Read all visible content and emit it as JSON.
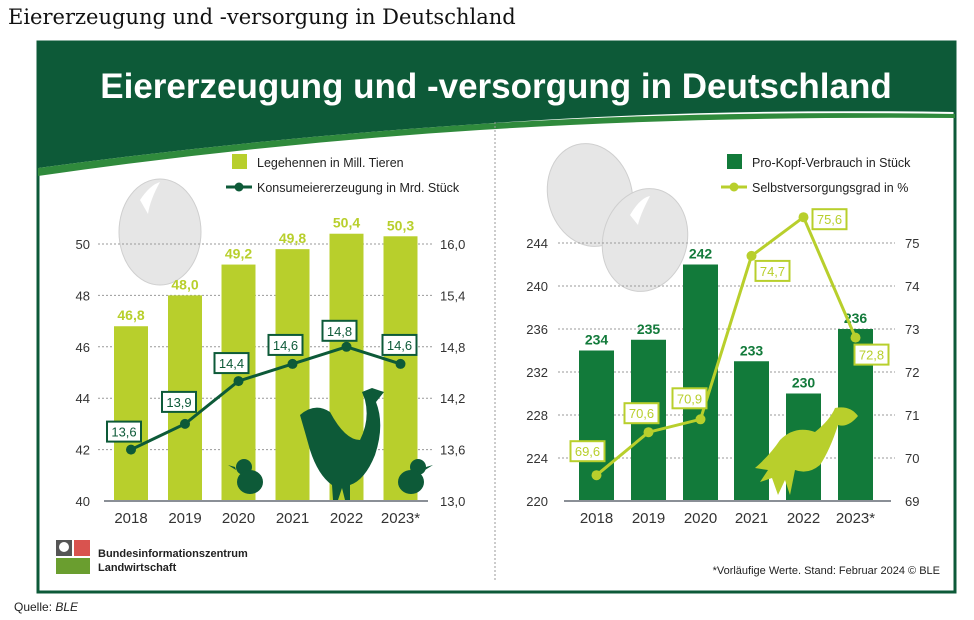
{
  "page_title": "Eiererzeugung und -versorgung in Deutschland",
  "source_label": "Quelle:",
  "source_value": "BLE",
  "infographic": {
    "title": "Eiererzeugung und -versorgung in Deutschland",
    "logo_line1": "Bundesinformationszentrum",
    "logo_line2": "Landwirtschaft",
    "footnote": "*Vorläufige Werte. Stand: Februar 2024 © BLE"
  },
  "colors": {
    "dark_green": "#0d5a38",
    "green": "#127a3a",
    "lime": "#b8cf2c"
  },
  "chart_data": [
    {
      "type": "bar+line",
      "categories": [
        "2018",
        "2019",
        "2020",
        "2021",
        "2022",
        "2023*"
      ],
      "series": [
        {
          "name": "Legehennen in Mill. Tieren",
          "kind": "bar",
          "axis": "left",
          "values": [
            46.8,
            48.0,
            49.2,
            49.8,
            50.4,
            50.3
          ],
          "labels": [
            "46,8",
            "48,0",
            "49,2",
            "49,8",
            "50,4",
            "50,3"
          ]
        },
        {
          "name": "Konsumeiererzeugung in Mrd. Stück",
          "kind": "line",
          "axis": "right",
          "values": [
            13.6,
            13.9,
            14.4,
            14.6,
            14.8,
            14.6
          ],
          "labels": [
            "13,6",
            "13,9",
            "14,4",
            "14,6",
            "14,8",
            "14,6"
          ]
        }
      ],
      "y_left": {
        "range": [
          40,
          50
        ],
        "ticks": [
          "40",
          "42",
          "44",
          "46",
          "48",
          "50"
        ]
      },
      "y_right": {
        "range": [
          13.0,
          16.0
        ],
        "ticks": [
          "13,0",
          "13,6",
          "14,2",
          "14,8",
          "15,4",
          "16,0"
        ]
      },
      "grid": true,
      "legend": "top-right"
    },
    {
      "type": "bar+line",
      "categories": [
        "2018",
        "2019",
        "2020",
        "2021",
        "2022",
        "2023*"
      ],
      "series": [
        {
          "name": "Pro-Kopf-Verbrauch in Stück",
          "kind": "bar",
          "axis": "left",
          "values": [
            234,
            235,
            242,
            233,
            230,
            236
          ],
          "labels": [
            "234",
            "235",
            "242",
            "233",
            "230",
            "236"
          ]
        },
        {
          "name": "Selbstversorgungsgrad in %",
          "kind": "line",
          "axis": "right",
          "values": [
            69.6,
            70.6,
            70.9,
            74.7,
            75.6,
            72.8
          ],
          "labels": [
            "69,6",
            "70,6",
            "70,9",
            "74,7",
            "75,6",
            "72,8"
          ]
        }
      ],
      "y_left": {
        "range": [
          220,
          244
        ],
        "ticks": [
          "220",
          "224",
          "228",
          "232",
          "236",
          "240",
          "244"
        ]
      },
      "y_right": {
        "range": [
          69,
          75
        ],
        "ticks": [
          "69",
          "70",
          "71",
          "72",
          "73",
          "74",
          "75"
        ]
      },
      "grid": true,
      "legend": "top-right"
    }
  ]
}
